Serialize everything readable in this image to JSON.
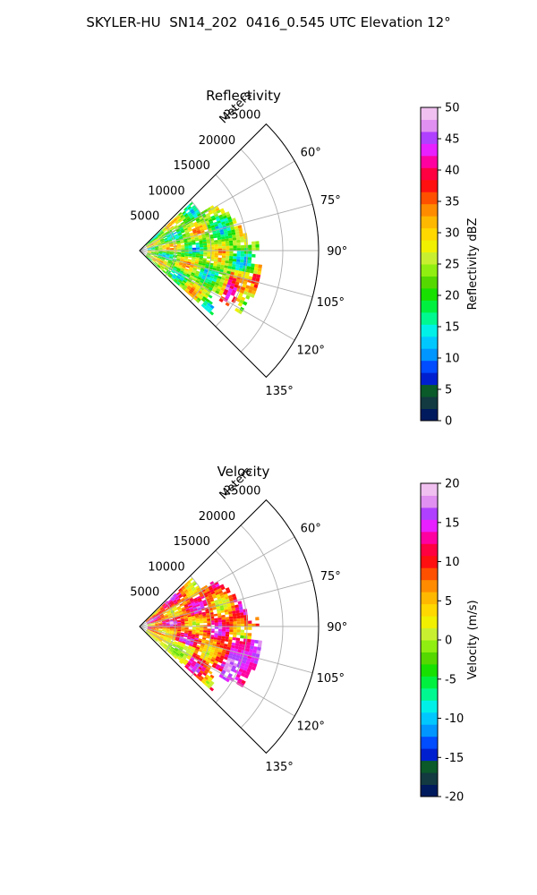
{
  "suptitle": "SKYLER-HU  SN14_202  0416_0.545 UTC Elevation 12°",
  "range_axis_label": "Meters",
  "range_ticks": [
    "5000",
    "10000",
    "15000",
    "20000",
    "25000"
  ],
  "angle_ticks": [
    "60°",
    "75°",
    "90°",
    "105°",
    "120°",
    "135°"
  ],
  "chart_data": [
    {
      "type": "heatmap",
      "projection": "polar sector",
      "title": "Reflectivity",
      "theta_range_deg": [
        45,
        135
      ],
      "r_range_m": [
        0,
        25000
      ],
      "colorbar": {
        "label": "Reflectivity dBZ",
        "range": [
          0,
          50
        ],
        "ticks": [
          0,
          5,
          10,
          15,
          20,
          25,
          30,
          35,
          40,
          45,
          50
        ]
      },
      "grid": true
    },
    {
      "type": "heatmap",
      "projection": "polar sector",
      "title": "Velocity",
      "theta_range_deg": [
        45,
        135
      ],
      "r_range_m": [
        0,
        25000
      ],
      "colorbar": {
        "label": "Velocity (m/s)",
        "range": [
          -20,
          20
        ],
        "ticks": [
          -20,
          -15,
          -10,
          -5,
          0,
          5,
          10,
          15,
          20
        ]
      },
      "grid": true
    }
  ]
}
